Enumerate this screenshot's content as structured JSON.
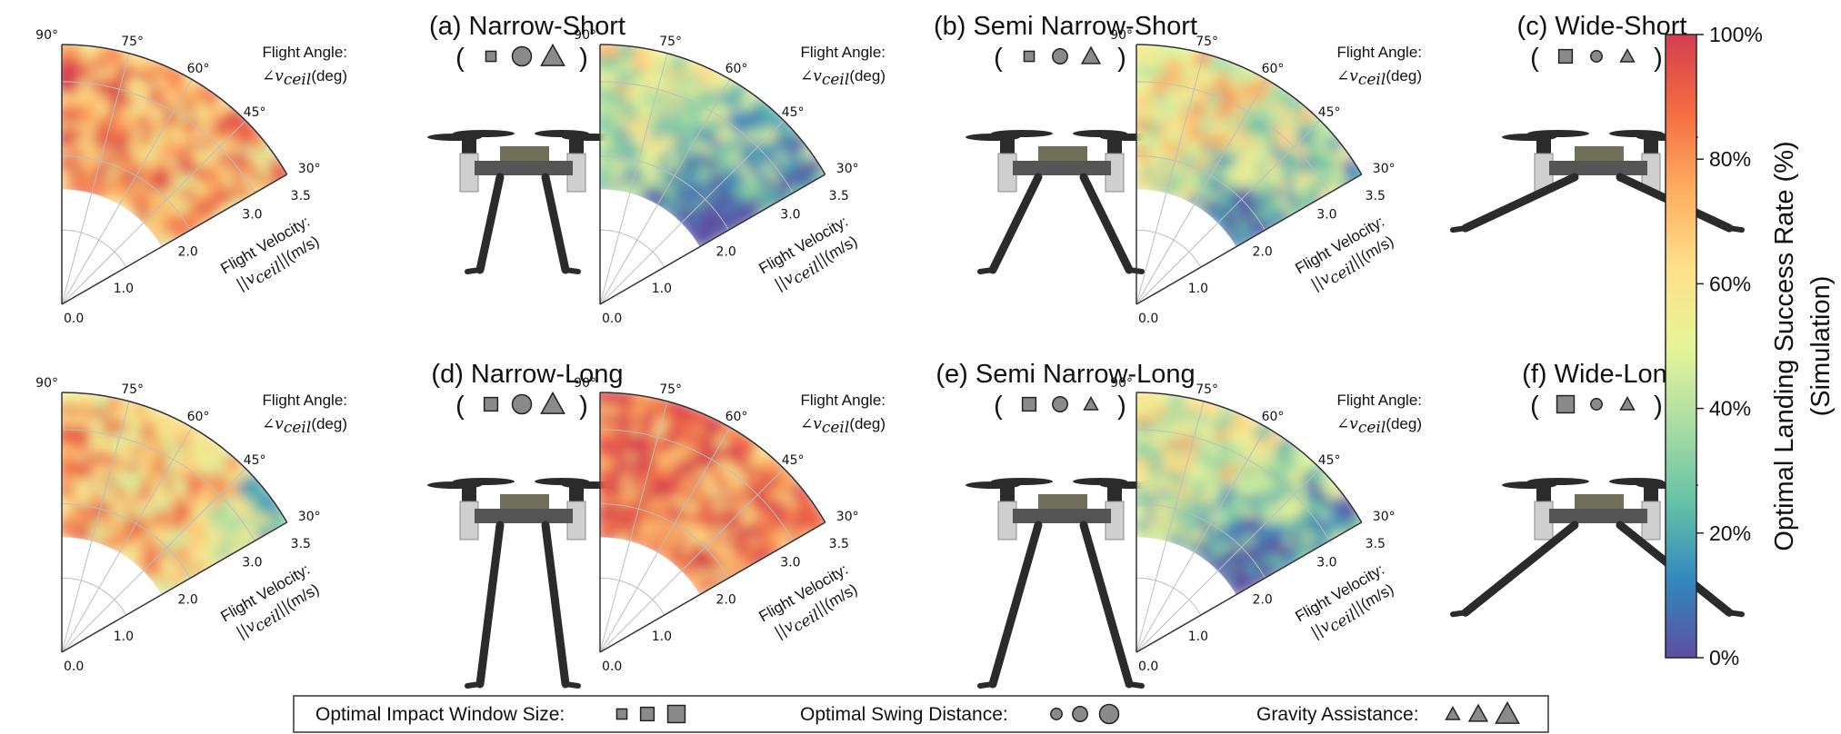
{
  "chart_data": {
    "type": "heatmap",
    "subtype": "polar-sector",
    "description_axes": {
      "angle_label_line1": "Flight Angle:",
      "angle_symbol": "∠v",
      "angle_subscript": "ceil",
      "angle_unit": "(deg)",
      "velocity_label_line1": "Flight Velocity:",
      "velocity_symbol_open": "||v",
      "velocity_subscript": "ceil",
      "velocity_symbol_close": "||",
      "velocity_unit": "(m/s)"
    },
    "angle_ticks": [
      "90°",
      "75°",
      "60°",
      "45°",
      "30°"
    ],
    "angle_tick_values": [
      90,
      75,
      60,
      45,
      30
    ],
    "radial_ticks": [
      "0.0",
      "1.0",
      "2.0",
      "3.0",
      "3.5"
    ],
    "radial_tick_values": [
      0,
      1,
      2,
      3,
      3.5
    ],
    "angle_range_deg": [
      30,
      90
    ],
    "velocity_range": [
      0,
      3.5
    ],
    "panels": [
      {
        "id": "a",
        "title": "(a) Narrow-Short",
        "window": "small",
        "swing": "large",
        "gravity": "large",
        "leg": "narrow",
        "length": "short",
        "inner_blank_radius": 1.55,
        "mean_rate": 72,
        "low_zone": "none"
      },
      {
        "id": "b",
        "title": "(b) Semi Narrow-Short",
        "window": "small",
        "swing": "medium",
        "gravity": "medium",
        "leg": "semi",
        "length": "short",
        "inner_blank_radius": 1.55,
        "mean_rate": 42,
        "low_zone": "lower"
      },
      {
        "id": "c",
        "title": "(c) Wide-Short",
        "window": "medium",
        "swing": "small",
        "gravity": "small",
        "leg": "wide",
        "length": "short",
        "inner_blank_radius": 1.55,
        "mean_rate": 58,
        "low_zone": "lower"
      },
      {
        "id": "d",
        "title": "(d) Narrow-Long",
        "window": "medium",
        "swing": "large",
        "gravity": "large",
        "leg": "narrow",
        "length": "long",
        "inner_blank_radius": 1.55,
        "mean_rate": 68,
        "low_zone": "edge"
      },
      {
        "id": "e",
        "title": "(e) Semi Narrow-Long",
        "window": "medium",
        "swing": "medium",
        "gravity": "small",
        "leg": "semi",
        "length": "long",
        "inner_blank_radius": 1.55,
        "mean_rate": 80,
        "low_zone": "none"
      },
      {
        "id": "f",
        "title": "(f) Wide-Long",
        "window": "large",
        "swing": "small",
        "gravity": "small",
        "leg": "wide",
        "length": "long",
        "inner_blank_radius": 1.55,
        "mean_rate": 48,
        "low_zone": "lower"
      }
    ],
    "colorbar": {
      "ticks": [
        "100%",
        "80%",
        "60%",
        "40%",
        "20%",
        "0%"
      ],
      "values": [
        100,
        80,
        60,
        40,
        20,
        0
      ],
      "label_line1": "Optimal Landing Success Rate (%)",
      "label_line2": "(Simulation)",
      "colormap": "Spectral_r",
      "stops": [
        "#5e4fa2",
        "#3288bd",
        "#66c2a5",
        "#abdda4",
        "#e6f598",
        "#fee08b",
        "#fdae61",
        "#f46d43",
        "#d53e4f"
      ]
    },
    "legend": {
      "window_label": "Optimal Impact Window Size:",
      "swing_label": "Optimal Swing Distance:",
      "gravity_label": "Gravity Assistance:",
      "sizes": [
        "small",
        "medium",
        "large"
      ]
    }
  },
  "colors": {
    "glyph_fill": "#8a8a8a",
    "glyph_stroke": "#222222",
    "drone_body": "#555555",
    "drone_dark": "#2b2b2b",
    "drone_silver": "#cfcfcf",
    "grid": "#bdbdbd",
    "frame": "#333333"
  }
}
